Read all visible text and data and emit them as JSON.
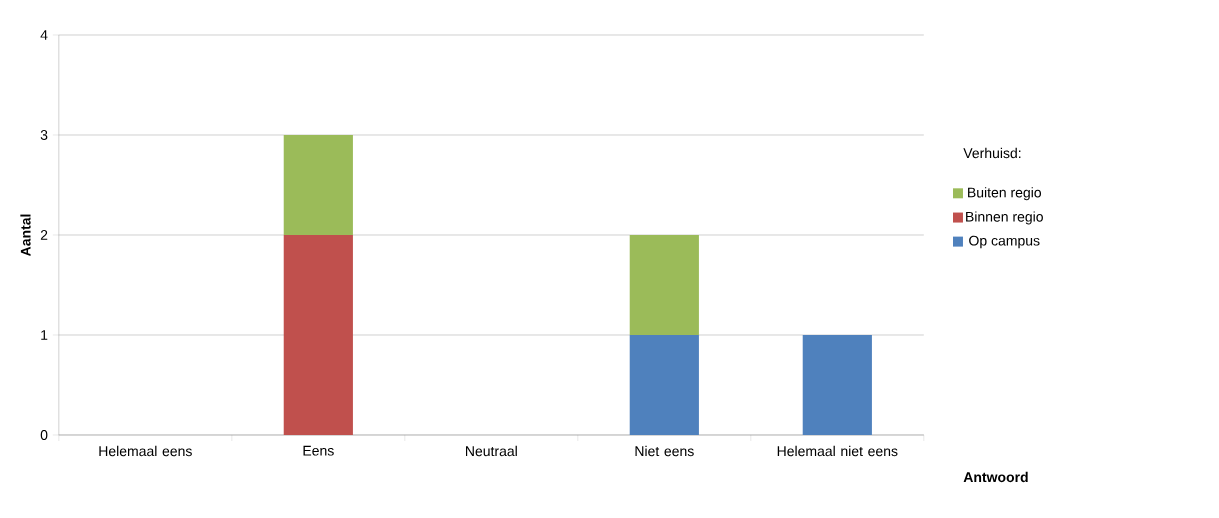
{
  "chart_data": {
    "type": "bar",
    "stacked": true,
    "xlabel": "Antwoord",
    "ylabel": "Aantal",
    "legend_title": "Verhuisd:",
    "categories": [
      "Helemaal eens",
      "Eens",
      "Neutraal",
      "Niet eens",
      "Helemaal niet eens"
    ],
    "series": [
      {
        "name": "Op campus",
        "color": "#4f81bd",
        "values": [
          0,
          0,
          0,
          1,
          1
        ]
      },
      {
        "name": "Binnen regio",
        "color": "#c0504d",
        "values": [
          0,
          2,
          0,
          0,
          0
        ]
      },
      {
        "name": "Buiten regio",
        "color": "#9bbb59",
        "values": [
          0,
          1,
          0,
          1,
          0
        ]
      }
    ],
    "ylim": [
      0,
      4
    ],
    "yticks": [
      0,
      1,
      2,
      3,
      4
    ],
    "grid": "y",
    "legend": "right"
  }
}
